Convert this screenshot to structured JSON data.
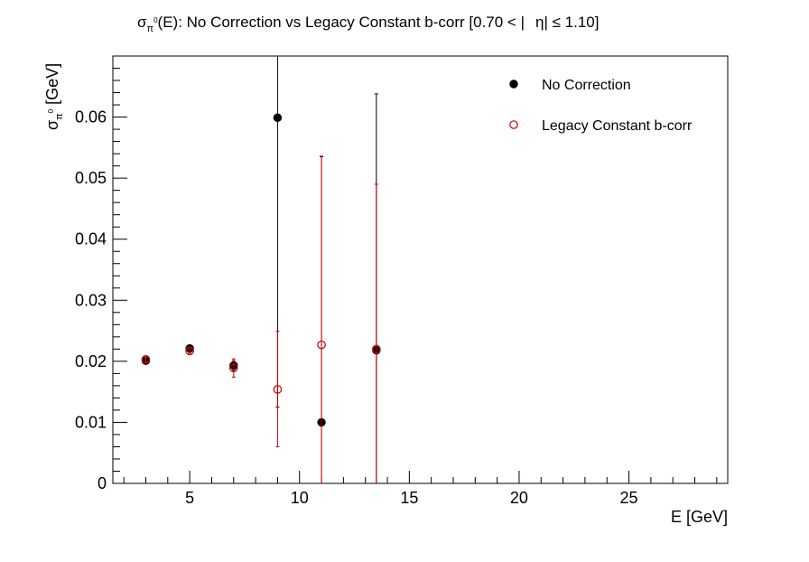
{
  "chart_data": {
    "type": "scatter",
    "title": {
      "sigma": "σ",
      "sub_pi": "π",
      "sup_zero": "0",
      "main": "(E): No Correction vs Legacy Constant b-corr   [0.70 < |",
      "eta": "η",
      "tail": "| ≤ 1.10]"
    },
    "xlabel": "E [GeV]",
    "ylabel": {
      "sigma": "σ",
      "sub_pi": "π",
      "sup_zero": "0",
      "unit": " [GeV]"
    },
    "xlim": [
      1.5,
      29.5
    ],
    "ylim": [
      0,
      0.07
    ],
    "x_ticks": [
      5,
      10,
      15,
      20,
      25
    ],
    "x_tick_labels": [
      "5",
      "10",
      "15",
      "20",
      "25"
    ],
    "y_ticks": [
      0,
      0.01,
      0.02,
      0.03,
      0.04,
      0.05,
      0.06
    ],
    "y_tick_labels": [
      "0",
      "0.01",
      "0.02",
      "0.03",
      "0.04",
      "0.05",
      "0.06"
    ],
    "grid": false,
    "legend_position": "top-right",
    "series": [
      {
        "name": "No Correction",
        "color": "#000000",
        "marker": "filled-circle",
        "points": [
          {
            "x": 3,
            "y": 0.0201,
            "err_low": 0.0004,
            "err_high": 0.0004
          },
          {
            "x": 5,
            "y": 0.0221,
            "err_low": 0.0004,
            "err_high": 0.0004
          },
          {
            "x": 7,
            "y": 0.0193,
            "err_low": 0.0008,
            "err_high": 0.0008
          },
          {
            "x": 9,
            "y": 0.0599,
            "err_low": 0.0474,
            "err_high": 0.0101
          },
          {
            "x": 11,
            "y": 0.01,
            "err_low": 0.01,
            "err_high": 0.0435
          },
          {
            "x": 13.5,
            "y": 0.0218,
            "err_low": 0.0218,
            "err_high": 0.042
          }
        ]
      },
      {
        "name": "Legacy Constant b-corr",
        "color": "#cc0000",
        "marker": "open-circle",
        "points": [
          {
            "x": 3,
            "y": 0.0203,
            "err_low": 0.0004,
            "err_high": 0.0004
          },
          {
            "x": 5,
            "y": 0.0217,
            "err_low": 0.0004,
            "err_high": 0.0004
          },
          {
            "x": 7,
            "y": 0.0189,
            "err_low": 0.0015,
            "err_high": 0.0015
          },
          {
            "x": 9,
            "y": 0.0154,
            "err_low": 0.0094,
            "err_high": 0.0095
          },
          {
            "x": 11,
            "y": 0.0227,
            "err_low": 0.0227,
            "err_high": 0.0309
          },
          {
            "x": 13.5,
            "y": 0.022,
            "err_low": 0.022,
            "err_high": 0.027
          }
        ]
      }
    ]
  }
}
